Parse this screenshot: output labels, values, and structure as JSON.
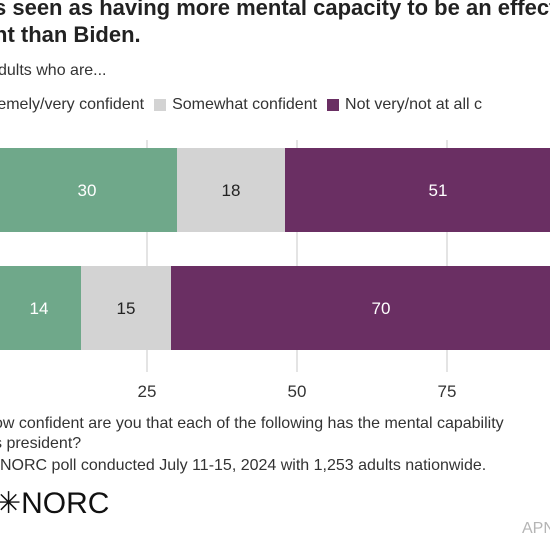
{
  "header": {
    "title_line1": "s seen as having more mental capacity to be an effect",
    "title_line2": "nt than Biden.",
    "subtitle": "dults who are..."
  },
  "legend": [
    {
      "label": "remely/very confident",
      "color": "#6fa88a"
    },
    {
      "label": "Somewhat confident",
      "color": "#d3d3d3"
    },
    {
      "label": "Not very/not at all c",
      "color": "#6a2f63"
    }
  ],
  "chart_data": {
    "type": "bar",
    "orientation": "horizontal",
    "stacked": true,
    "categories": [
      "",
      ""
    ],
    "series": [
      {
        "name": "remely/very confident",
        "values": [
          30,
          14
        ],
        "color": "#6fa88a"
      },
      {
        "name": "Somewhat confident",
        "values": [
          18,
          15
        ],
        "color": "#d3d3d3"
      },
      {
        "name": "Not very/not at all c",
        "values": [
          51,
          70
        ],
        "color": "#6a2f63"
      }
    ],
    "xlim": [
      0,
      100
    ],
    "xticks": [
      25,
      50,
      75
    ],
    "grid": true
  },
  "footer": {
    "note_line1": "ow confident are you that each of the following has the mental capability",
    "note_line2": "s president?",
    "source": "NORC poll conducted July 11-15, 2024 with 1,253 adults nationwide.",
    "logo_text": "NORC",
    "credit": "APN"
  }
}
